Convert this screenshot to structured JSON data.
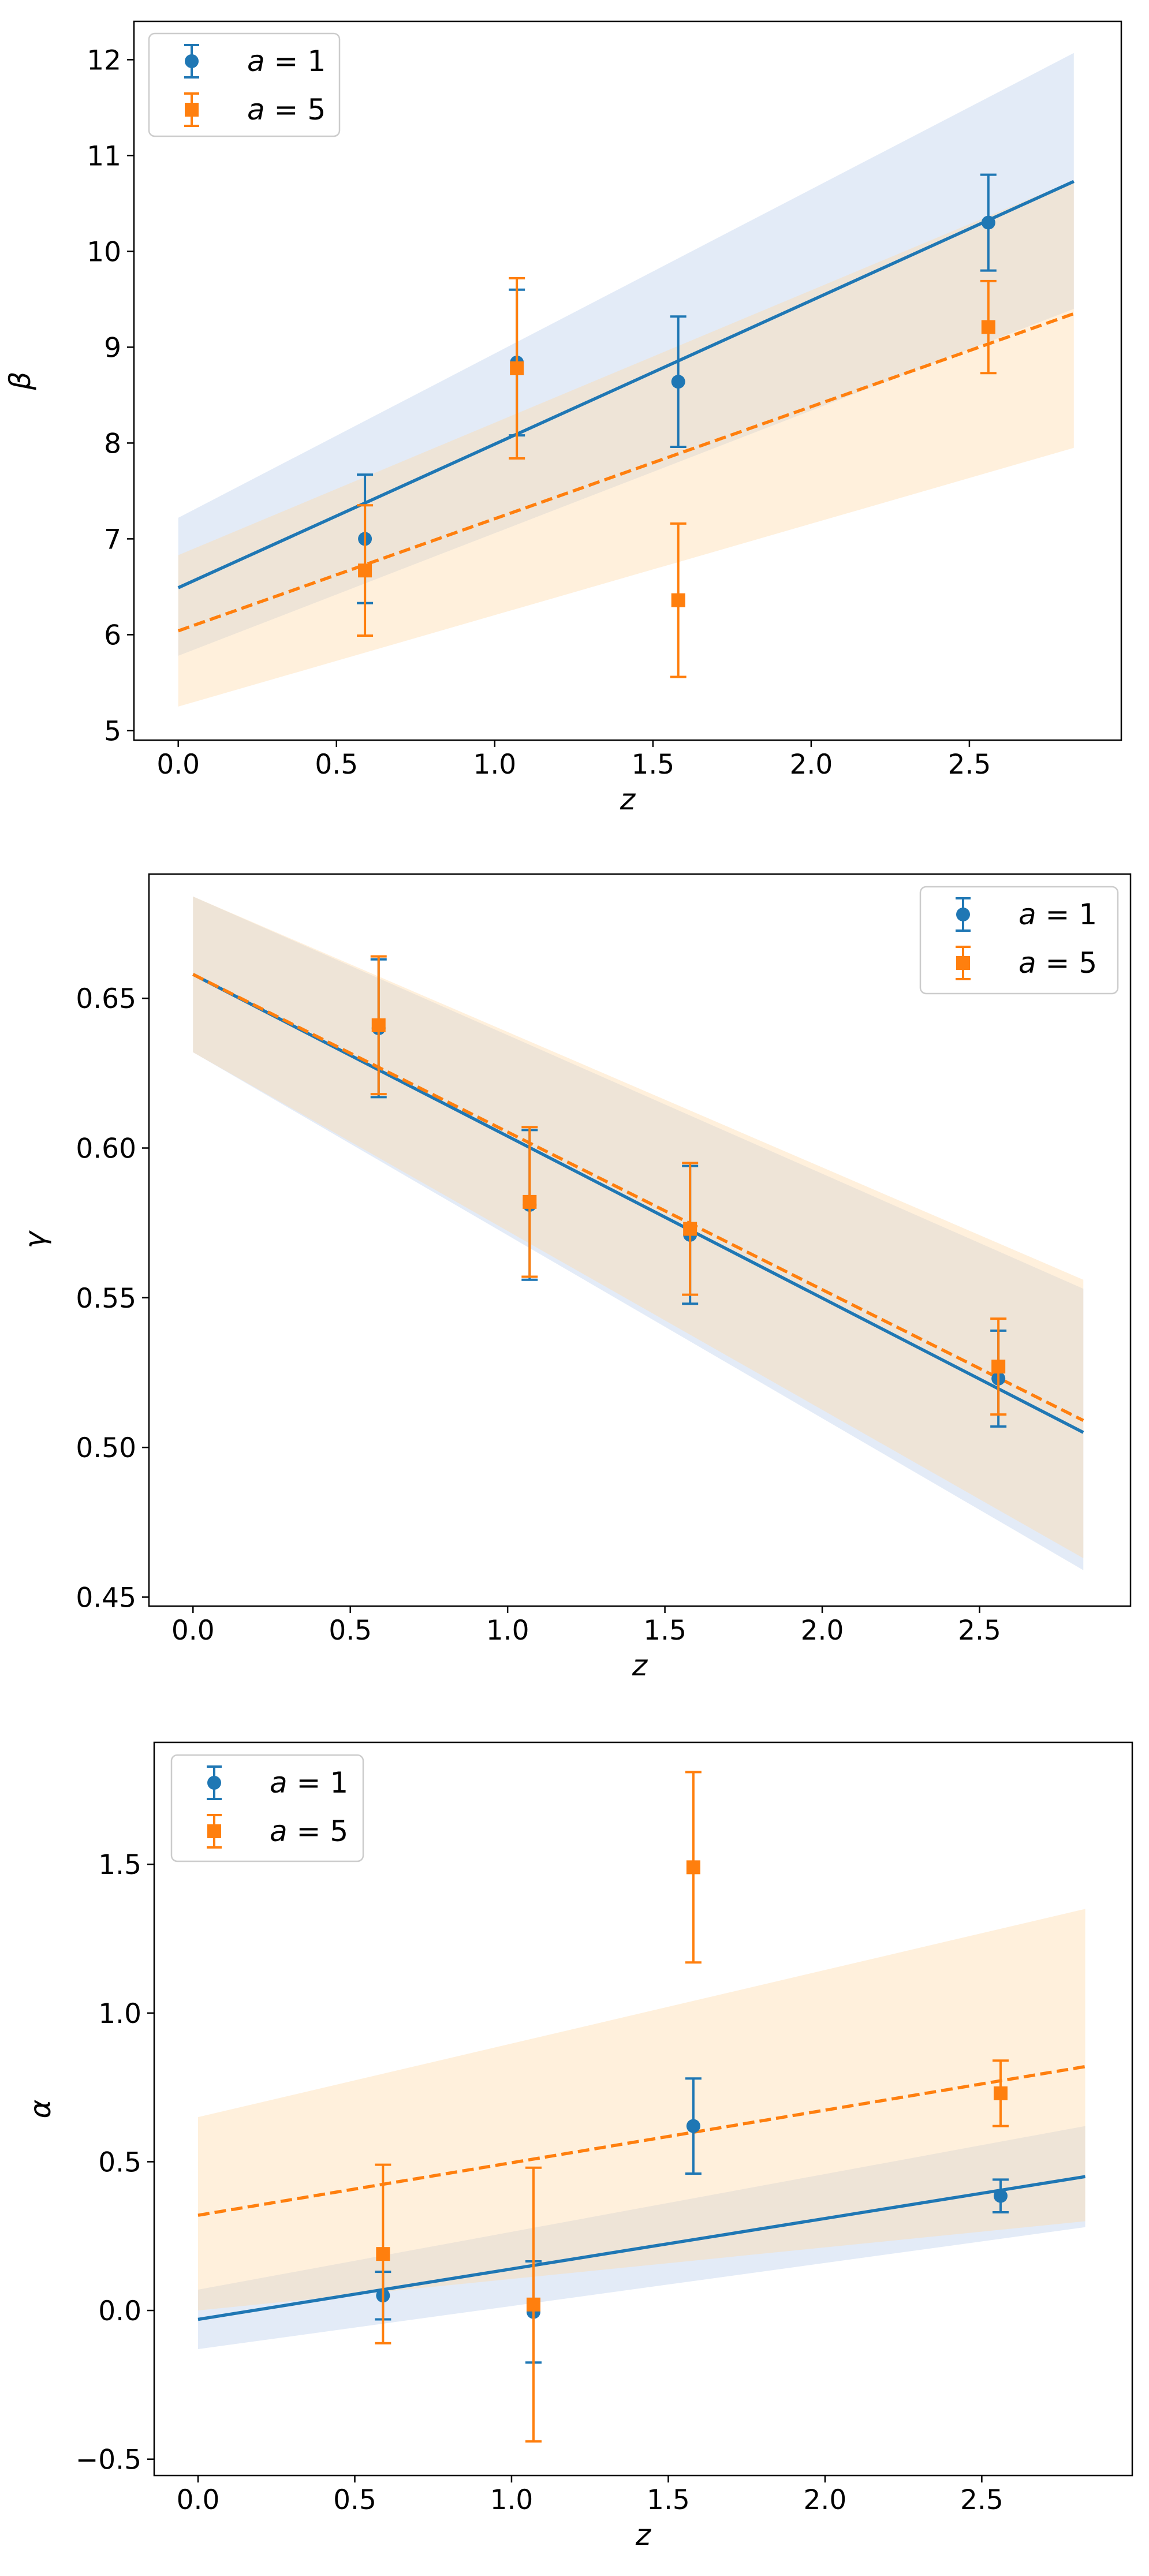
{
  "chart_data": [
    {
      "type": "scatter",
      "title": "",
      "xlabel": "z",
      "ylabel": "β",
      "xlim": [
        -0.14,
        2.98
      ],
      "ylim": [
        4.9,
        12.4
      ],
      "xticks": [
        "0.0",
        "0.5",
        "1.0",
        "1.5",
        "2.0",
        "2.5"
      ],
      "yticks": [
        "5",
        "6",
        "7",
        "8",
        "9",
        "10",
        "11",
        "12"
      ],
      "legend_position": "top-left",
      "grid": false,
      "series": [
        {
          "name": "a = 1",
          "color": "#1f77b4",
          "marker": "circle",
          "points": [
            {
              "x": 0.59,
              "y": 7.0,
              "err": 0.67
            },
            {
              "x": 1.07,
              "y": 8.84,
              "err": 0.76
            },
            {
              "x": 1.58,
              "y": 8.64,
              "err": 0.68
            },
            {
              "x": 2.56,
              "y": 10.3,
              "err": 0.5
            }
          ],
          "fit": {
            "x": [
              0,
              2.83
            ],
            "y": [
              6.49,
              10.73
            ],
            "style": "solid"
          },
          "band": {
            "x": [
              0,
              2.83
            ],
            "lower": [
              5.78,
              9.4
            ],
            "upper": [
              7.22,
              12.07
            ]
          }
        },
        {
          "name": "a = 5",
          "color": "#ff7f0e",
          "marker": "square",
          "points": [
            {
              "x": 0.59,
              "y": 6.67,
              "err": 0.68
            },
            {
              "x": 1.07,
              "y": 8.78,
              "err": 0.94
            },
            {
              "x": 1.58,
              "y": 6.36,
              "err": 0.8
            },
            {
              "x": 2.56,
              "y": 9.21,
              "err": 0.48
            }
          ],
          "fit": {
            "x": [
              0,
              2.83
            ],
            "y": [
              6.04,
              9.35
            ],
            "style": "dashed"
          },
          "band": {
            "x": [
              0,
              2.83
            ],
            "lower": [
              5.25,
              7.95
            ],
            "upper": [
              6.83,
              10.74
            ]
          }
        }
      ]
    },
    {
      "type": "scatter",
      "title": "",
      "xlabel": "z",
      "ylabel": "γ",
      "xlim": [
        -0.14,
        2.98
      ],
      "ylim": [
        0.447,
        0.6915
      ],
      "xticks": [
        "0.0",
        "0.5",
        "1.0",
        "1.5",
        "2.0",
        "2.5"
      ],
      "yticks": [
        "0.45",
        "0.50",
        "0.55",
        "0.60",
        "0.65"
      ],
      "legend_position": "top-right",
      "grid": false,
      "series": [
        {
          "name": "a = 1",
          "color": "#1f77b4",
          "marker": "circle",
          "points": [
            {
              "x": 0.59,
              "y": 0.64,
              "err": 0.023
            },
            {
              "x": 1.07,
              "y": 0.581,
              "err": 0.025
            },
            {
              "x": 1.58,
              "y": 0.571,
              "err": 0.023
            },
            {
              "x": 2.56,
              "y": 0.523,
              "err": 0.016
            }
          ],
          "fit": {
            "x": [
              0,
              2.83
            ],
            "y": [
              0.658,
              0.505
            ],
            "style": "solid"
          },
          "band": {
            "x": [
              0,
              2.83
            ],
            "lower": [
              0.632,
              0.459
            ],
            "upper": [
              0.684,
              0.553
            ]
          }
        },
        {
          "name": "a = 5",
          "color": "#ff7f0e",
          "marker": "square",
          "points": [
            {
              "x": 0.59,
              "y": 0.641,
              "err": 0.023
            },
            {
              "x": 1.07,
              "y": 0.582,
              "err": 0.025
            },
            {
              "x": 1.58,
              "y": 0.573,
              "err": 0.022
            },
            {
              "x": 2.56,
              "y": 0.527,
              "err": 0.016
            }
          ],
          "fit": {
            "x": [
              0,
              2.83
            ],
            "y": [
              0.658,
              0.509
            ],
            "style": "dashed"
          },
          "band": {
            "x": [
              0,
              2.83
            ],
            "lower": [
              0.632,
              0.463
            ],
            "upper": [
              0.684,
              0.556
            ]
          }
        }
      ]
    },
    {
      "type": "scatter",
      "title": "",
      "xlabel": "z",
      "ylabel": "α",
      "xlim": [
        -0.14,
        2.98
      ],
      "ylim": [
        -0.555,
        1.91
      ],
      "xticks": [
        "0.0",
        "0.5",
        "1.0",
        "1.5",
        "2.0",
        "2.5"
      ],
      "yticks": [
        "−0.5",
        "0.0",
        "0.5",
        "1.0",
        "1.5"
      ],
      "legend_position": "top-left",
      "grid": false,
      "series": [
        {
          "name": "a = 1",
          "color": "#1f77b4",
          "marker": "circle",
          "points": [
            {
              "x": 0.59,
              "y": 0.05,
              "err": 0.08
            },
            {
              "x": 1.07,
              "y": -0.005,
              "err": 0.17
            },
            {
              "x": 1.58,
              "y": 0.62,
              "err": 0.16
            },
            {
              "x": 2.56,
              "y": 0.385,
              "err": 0.055
            }
          ],
          "fit": {
            "x": [
              0,
              2.83
            ],
            "y": [
              -0.03,
              0.45
            ],
            "style": "solid"
          },
          "band": {
            "x": [
              0,
              2.83
            ],
            "lower": [
              -0.13,
              0.28
            ],
            "upper": [
              0.07,
              0.62
            ]
          }
        },
        {
          "name": "a = 5",
          "color": "#ff7f0e",
          "marker": "square",
          "points": [
            {
              "x": 0.59,
              "y": 0.19,
              "err": 0.3
            },
            {
              "x": 1.07,
              "y": 0.02,
              "err": 0.46
            },
            {
              "x": 1.58,
              "y": 1.49,
              "err": 0.32
            },
            {
              "x": 2.56,
              "y": 0.73,
              "err": 0.11
            }
          ],
          "fit": {
            "x": [
              0,
              2.83
            ],
            "y": [
              0.32,
              0.82
            ],
            "style": "dashed"
          },
          "band": {
            "x": [
              0,
              2.83
            ],
            "lower": [
              0.0,
              0.3
            ],
            "upper": [
              0.65,
              1.35
            ]
          }
        }
      ]
    }
  ]
}
